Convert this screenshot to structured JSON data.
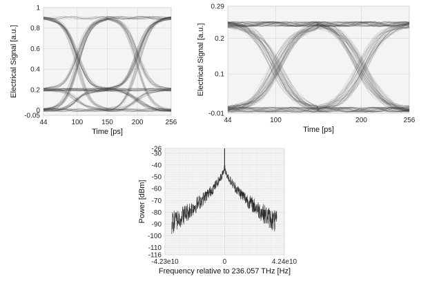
{
  "chart_data": [
    {
      "type": "line",
      "subtype": "eye-diagram",
      "xlabel": "Time [ps]",
      "ylabel": "Electrical Signal [a.u.]",
      "xlim": [
        44,
        256
      ],
      "ylim": [
        -0.05,
        1
      ],
      "xticks": [
        44,
        100,
        150,
        200,
        256
      ],
      "yticks": [
        -0.05,
        0,
        0.2,
        0.4,
        0.6,
        0.8,
        1
      ],
      "levels": [
        0.0,
        0.2,
        0.9
      ],
      "crossings": [
        100,
        200
      ],
      "grid": true
    },
    {
      "type": "line",
      "subtype": "eye-diagram",
      "xlabel": "Time [ps]",
      "ylabel": "Electrical Signal [a.u.]",
      "xlim": [
        44,
        256
      ],
      "ylim": [
        -0.01,
        0.29
      ],
      "xticks": [
        44,
        100,
        200,
        256
      ],
      "yticks": [
        -0.01,
        0.1,
        0.2,
        0.29
      ],
      "levels": [
        0.0,
        0.24
      ],
      "crossings": [
        100,
        200
      ],
      "grid": true
    },
    {
      "type": "line",
      "subtype": "spectrum",
      "xlabel": "Frequency relative to 236.057 THz [Hz]",
      "ylabel": "Power [dBm]",
      "xlim": [
        -42300000000.0,
        42400000000.0
      ],
      "ylim": [
        -116,
        -26
      ],
      "xticks": [
        -42300000000.0,
        0,
        42400000000.0
      ],
      "xticklabels": [
        "-4.23e10",
        "0",
        "4.24e10"
      ],
      "yticks": [
        -26,
        -30,
        -40,
        -50,
        -60,
        -70,
        -80,
        -90,
        -100,
        -110,
        -116
      ],
      "peak_dbm": -26,
      "noise_floor_dbm": -90,
      "grid": true
    }
  ]
}
